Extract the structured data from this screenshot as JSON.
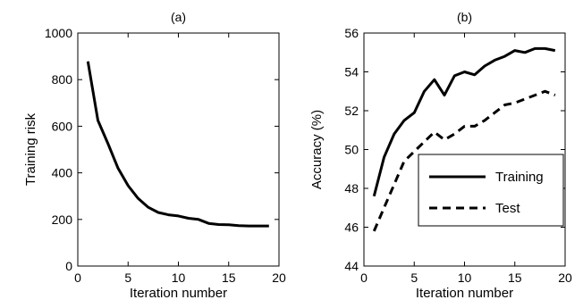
{
  "chart_data": [
    {
      "type": "line",
      "title": "(a)",
      "xlabel": "Iteration number",
      "ylabel": "Training risk",
      "xlim": [
        0,
        20
      ],
      "ylim": [
        0,
        1000
      ],
      "xticks": [
        "0",
        "5",
        "10",
        "15",
        "20"
      ],
      "yticks": [
        "0",
        "200",
        "400",
        "600",
        "800",
        "1000"
      ],
      "grid": false,
      "legend": "none",
      "series": [
        {
          "style": "solid",
          "color": "#000000",
          "x": [
            1,
            2,
            3,
            4,
            5,
            6,
            7,
            8,
            9,
            10,
            11,
            12,
            13,
            14,
            15,
            16,
            17,
            18,
            19
          ],
          "y": [
            878,
            625,
            525,
            420,
            345,
            290,
            252,
            230,
            220,
            215,
            205,
            200,
            183,
            178,
            177,
            173,
            172,
            172,
            172
          ]
        }
      ]
    },
    {
      "type": "line",
      "title": "(b)",
      "xlabel": "Iteration number",
      "ylabel": "Accuracy (%)",
      "xlim": [
        0,
        20
      ],
      "ylim": [
        44,
        56
      ],
      "xticks": [
        "0",
        "5",
        "10",
        "15",
        "20"
      ],
      "yticks": [
        "44",
        "46",
        "48",
        "50",
        "52",
        "54",
        "56"
      ],
      "grid": false,
      "legend": "lower-right",
      "series": [
        {
          "name": "Training",
          "style": "solid",
          "color": "#000000",
          "x": [
            1,
            2,
            3,
            4,
            5,
            6,
            7,
            8,
            9,
            10,
            11,
            12,
            13,
            14,
            15,
            16,
            17,
            18,
            19
          ],
          "y": [
            47.6,
            49.6,
            50.8,
            51.5,
            51.9,
            53.0,
            53.6,
            52.8,
            53.8,
            54.0,
            53.85,
            54.3,
            54.6,
            54.8,
            55.1,
            55.0,
            55.2,
            55.2,
            55.1
          ]
        },
        {
          "name": "Test",
          "style": "dashed",
          "color": "#000000",
          "x": [
            1,
            2,
            3,
            4,
            5,
            6,
            7,
            8,
            9,
            10,
            11,
            12,
            13,
            14,
            15,
            16,
            17,
            18,
            19
          ],
          "y": [
            45.8,
            47.0,
            48.2,
            49.4,
            49.9,
            50.4,
            50.9,
            50.5,
            50.8,
            51.2,
            51.2,
            51.5,
            51.9,
            52.3,
            52.4,
            52.6,
            52.8,
            53.0,
            52.8
          ]
        }
      ]
    }
  ]
}
